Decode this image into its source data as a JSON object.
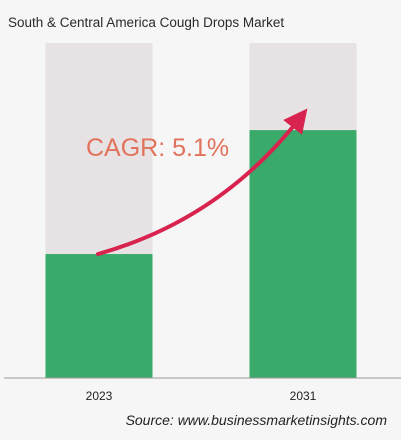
{
  "title": "South & Central America Cough Drops Market",
  "annotation": "CAGR: 5.1%",
  "source": "Source: www.businessmarketinsights.com",
  "colors": {
    "background": "#f6f6f6",
    "bar_fill": "#3aaa6b",
    "bar_track": "#e7e3e4",
    "arrow": "#d8234f",
    "annotation": "#e2725b"
  },
  "chart_data": {
    "type": "bar",
    "categories": [
      "2023",
      "2031"
    ],
    "values": [
      0.37,
      0.74
    ],
    "ylim": [
      0,
      1
    ],
    "grid": false,
    "legend": "none"
  }
}
